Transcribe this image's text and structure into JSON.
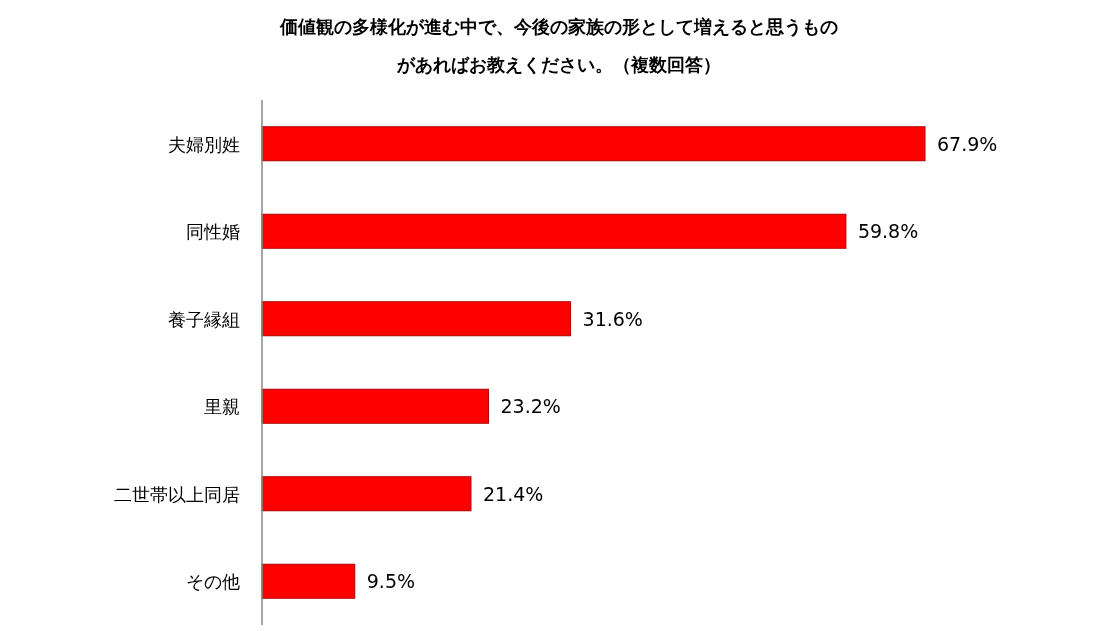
{
  "chart_data": {
    "type": "bar",
    "orientation": "horizontal",
    "title": "価値観の多様化が進む中で、今後の家族の形として増えると思うものがあればお教えください。（複数回答）",
    "categories": [
      "夫婦別姓",
      "同性婚",
      "養子縁組",
      "里親",
      "二世帯以上同居",
      "その他"
    ],
    "values": [
      67.9,
      59.8,
      31.6,
      23.2,
      21.4,
      9.5
    ],
    "value_labels": [
      "67.9%",
      "59.8%",
      "31.6%",
      "23.2%",
      "21.4%",
      "9.5%"
    ],
    "color": "#ff0000"
  }
}
